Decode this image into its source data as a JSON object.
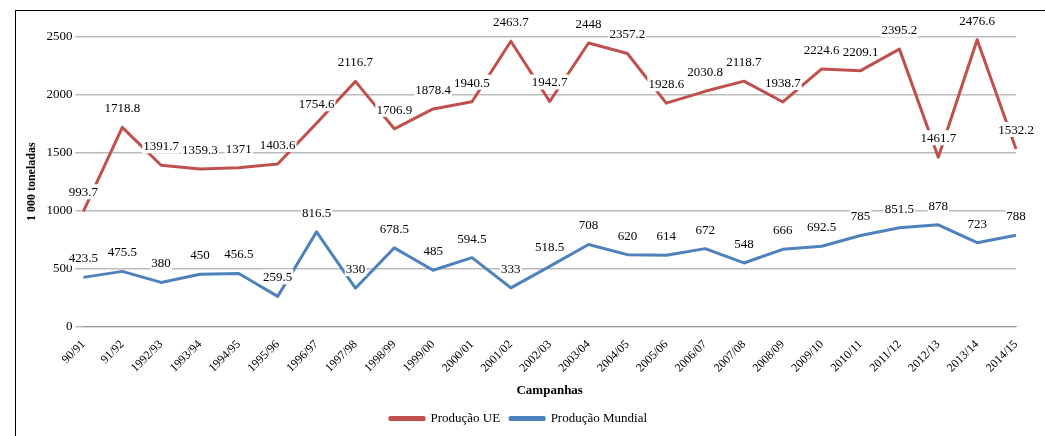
{
  "chart_data": {
    "type": "line",
    "xlabel": "Campanhas",
    "ylabel": "1 000 toneladas",
    "categories": [
      "90/91",
      "91/92",
      "1992/93",
      "1993/94",
      "1994/95",
      "1995/96",
      "1996/97",
      "1997/98",
      "1998/99",
      "1999/00",
      "2000/01",
      "2001/02",
      "2002/03",
      "2003/04",
      "2004/05",
      "2005/06",
      "2006/07",
      "2007/08",
      "2008/09",
      "2009/10",
      "2010/11",
      "2011/12",
      "2012/13",
      "2013/14",
      "2014/15"
    ],
    "series": [
      {
        "name": "Produção UE",
        "color": "#c0504d",
        "values": [
          993.7,
          1718.8,
          1391.7,
          1359.3,
          1371,
          1403.6,
          1754.6,
          2116.7,
          1706.9,
          1878.4,
          1940.5,
          2463.7,
          1942.7,
          2448,
          2357.2,
          1928.6,
          2030.8,
          2118.7,
          1938.7,
          2224.6,
          2209.1,
          2395.2,
          1461.7,
          2476.6,
          1532.2
        ]
      },
      {
        "name": "Produção Mundial",
        "color": "#4f81bd",
        "values": [
          423.5,
          475.5,
          380,
          450,
          456.5,
          259.5,
          816.5,
          330,
          678.5,
          485,
          594.5,
          333,
          518.5,
          708,
          620,
          614,
          672,
          548,
          666,
          692.5,
          785,
          851.5,
          878,
          723,
          788
        ]
      }
    ],
    "ylim": [
      0,
      2500
    ],
    "yticks": [
      0,
      500,
      1000,
      1500,
      2000,
      2500
    ],
    "grid": "y",
    "legend": "bottom",
    "data_labels": true,
    "marker": "none",
    "line_style": "solid"
  }
}
